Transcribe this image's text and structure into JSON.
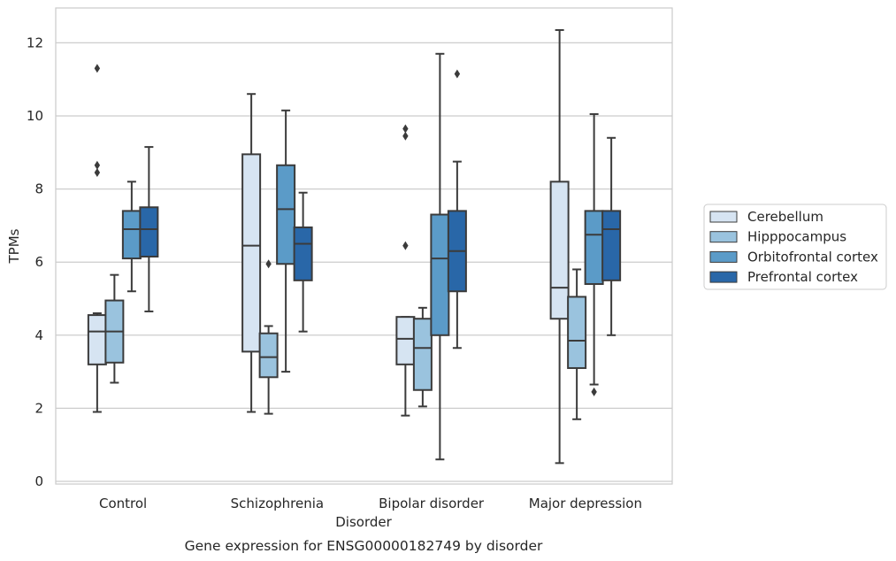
{
  "chart_data": {
    "type": "box",
    "caption": "Gene expression for ENSG00000182749 by disorder",
    "xlabel": "Disorder",
    "ylabel": "TPMs",
    "ylim": [
      -0.1,
      12.9
    ],
    "yticks": [
      0,
      2,
      4,
      6,
      8,
      10,
      12
    ],
    "grid": "horizontal",
    "legend_position": "right",
    "categories": [
      "Control",
      "Schizophrenia",
      "Bipolar disorder",
      "Major depression"
    ],
    "series": [
      {
        "name": "Cerebellum",
        "color": "#d6e4f2",
        "boxes": [
          {
            "whisker_low": 1.9,
            "q1": 3.2,
            "median": 4.1,
            "q3": 4.55,
            "whisker_high": 4.6,
            "outliers": [
              8.45,
              8.65,
              11.3
            ]
          },
          {
            "whisker_low": 1.9,
            "q1": 3.55,
            "median": 6.45,
            "q3": 8.95,
            "whisker_high": 10.6,
            "outliers": []
          },
          {
            "whisker_low": 1.8,
            "q1": 3.2,
            "median": 3.9,
            "q3": 4.5,
            "whisker_high": 4.5,
            "outliers": [
              6.45,
              9.45,
              9.65
            ]
          },
          {
            "whisker_low": 0.5,
            "q1": 4.45,
            "median": 5.3,
            "q3": 8.2,
            "whisker_high": 12.35,
            "outliers": []
          }
        ]
      },
      {
        "name": "Hipppocampus",
        "color": "#9ac3de",
        "boxes": [
          {
            "whisker_low": 2.7,
            "q1": 3.25,
            "median": 4.1,
            "q3": 4.95,
            "whisker_high": 5.65,
            "outliers": []
          },
          {
            "whisker_low": 1.85,
            "q1": 2.85,
            "median": 3.4,
            "q3": 4.05,
            "whisker_high": 4.25,
            "outliers": [
              5.95
            ]
          },
          {
            "whisker_low": 2.05,
            "q1": 2.5,
            "median": 3.65,
            "q3": 4.45,
            "whisker_high": 4.75,
            "outliers": []
          },
          {
            "whisker_low": 1.7,
            "q1": 3.1,
            "median": 3.85,
            "q3": 5.05,
            "whisker_high": 5.8,
            "outliers": []
          }
        ]
      },
      {
        "name": "Orbitofrontal cortex",
        "color": "#5b9bc8",
        "boxes": [
          {
            "whisker_low": 5.2,
            "q1": 6.1,
            "median": 6.9,
            "q3": 7.4,
            "whisker_high": 8.2,
            "outliers": []
          },
          {
            "whisker_low": 3.0,
            "q1": 5.95,
            "median": 7.45,
            "q3": 8.65,
            "whisker_high": 10.15,
            "outliers": []
          },
          {
            "whisker_low": 0.6,
            "q1": 4.0,
            "median": 6.1,
            "q3": 7.3,
            "whisker_high": 11.7,
            "outliers": []
          },
          {
            "whisker_low": 2.65,
            "q1": 5.4,
            "median": 6.75,
            "q3": 7.4,
            "whisker_high": 10.05,
            "outliers": [
              2.45
            ]
          }
        ]
      },
      {
        "name": "Prefrontal cortex",
        "color": "#2967a8",
        "boxes": [
          {
            "whisker_low": 4.65,
            "q1": 6.15,
            "median": 6.9,
            "q3": 7.5,
            "whisker_high": 9.15,
            "outliers": []
          },
          {
            "whisker_low": 4.1,
            "q1": 5.5,
            "median": 6.5,
            "q3": 6.95,
            "whisker_high": 7.9,
            "outliers": []
          },
          {
            "whisker_low": 3.65,
            "q1": 5.2,
            "median": 6.3,
            "q3": 7.4,
            "whisker_high": 8.75,
            "outliers": [
              11.15
            ]
          },
          {
            "whisker_low": 4.0,
            "q1": 5.5,
            "median": 6.9,
            "q3": 7.4,
            "whisker_high": 9.4,
            "outliers": []
          }
        ]
      }
    ]
  }
}
